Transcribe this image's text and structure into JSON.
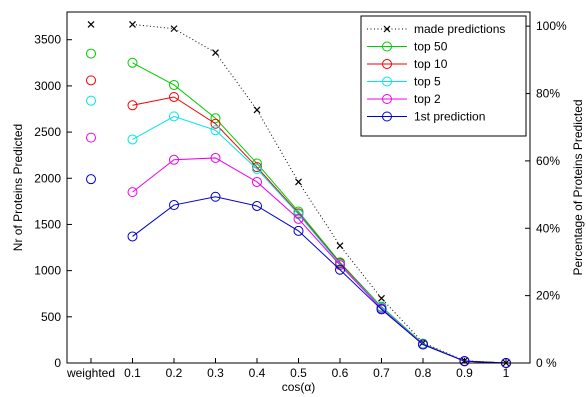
{
  "chart_data": {
    "type": "line",
    "xlabel": "cos(α)",
    "ylabel": "Nr of Proteins Predicted",
    "ylabel_right": "Percentage of Proteins Predicted",
    "categories": [
      "weighted",
      "0.1",
      "0.2",
      "0.3",
      "0.4",
      "0.5",
      "0.6",
      "0.7",
      "0.8",
      "0.9",
      "1"
    ],
    "ylim": [
      0,
      3800
    ],
    "yticks": [
      0,
      500,
      1000,
      1500,
      2000,
      2500,
      3000,
      3500
    ],
    "ylim_right": [
      0,
      104.2
    ],
    "yticks_right": [
      0,
      20,
      40,
      60,
      80,
      100
    ],
    "yticks_right_labels": [
      "0 %",
      "20%",
      "40%",
      "60%",
      "80%",
      "100%"
    ],
    "legend_position": "top-right",
    "grid": false,
    "series": [
      {
        "name": "made predictions",
        "color": "#000000",
        "marker": "x",
        "style": "dotted",
        "values": [
          3665,
          3665,
          3620,
          3360,
          2740,
          1960,
          1270,
          700,
          220,
          25,
          0
        ]
      },
      {
        "name": "top 50",
        "color": "#00cc00",
        "marker": "o",
        "style": "solid",
        "values": [
          3350,
          3250,
          3010,
          2650,
          2160,
          1640,
          1090,
          610,
          210,
          20,
          0
        ]
      },
      {
        "name": "top 10",
        "color": "#ee0000",
        "marker": "o",
        "style": "solid",
        "values": [
          3060,
          2790,
          2880,
          2590,
          2120,
          1620,
          1080,
          600,
          205,
          20,
          0
        ]
      },
      {
        "name": "top 5",
        "color": "#00e5ee",
        "marker": "o",
        "style": "solid",
        "values": [
          2840,
          2420,
          2670,
          2520,
          2100,
          1610,
          1070,
          600,
          205,
          20,
          0
        ]
      },
      {
        "name": "top 2",
        "color": "#ee00ee",
        "marker": "o",
        "style": "solid",
        "values": [
          2440,
          1850,
          2200,
          2220,
          1960,
          1560,
          1060,
          590,
          200,
          20,
          0
        ]
      },
      {
        "name": "1st prediction",
        "color": "#0000cc",
        "marker": "o",
        "style": "solid",
        "values": [
          1990,
          1370,
          1710,
          1800,
          1700,
          1430,
          1010,
          580,
          200,
          20,
          0
        ]
      }
    ]
  }
}
